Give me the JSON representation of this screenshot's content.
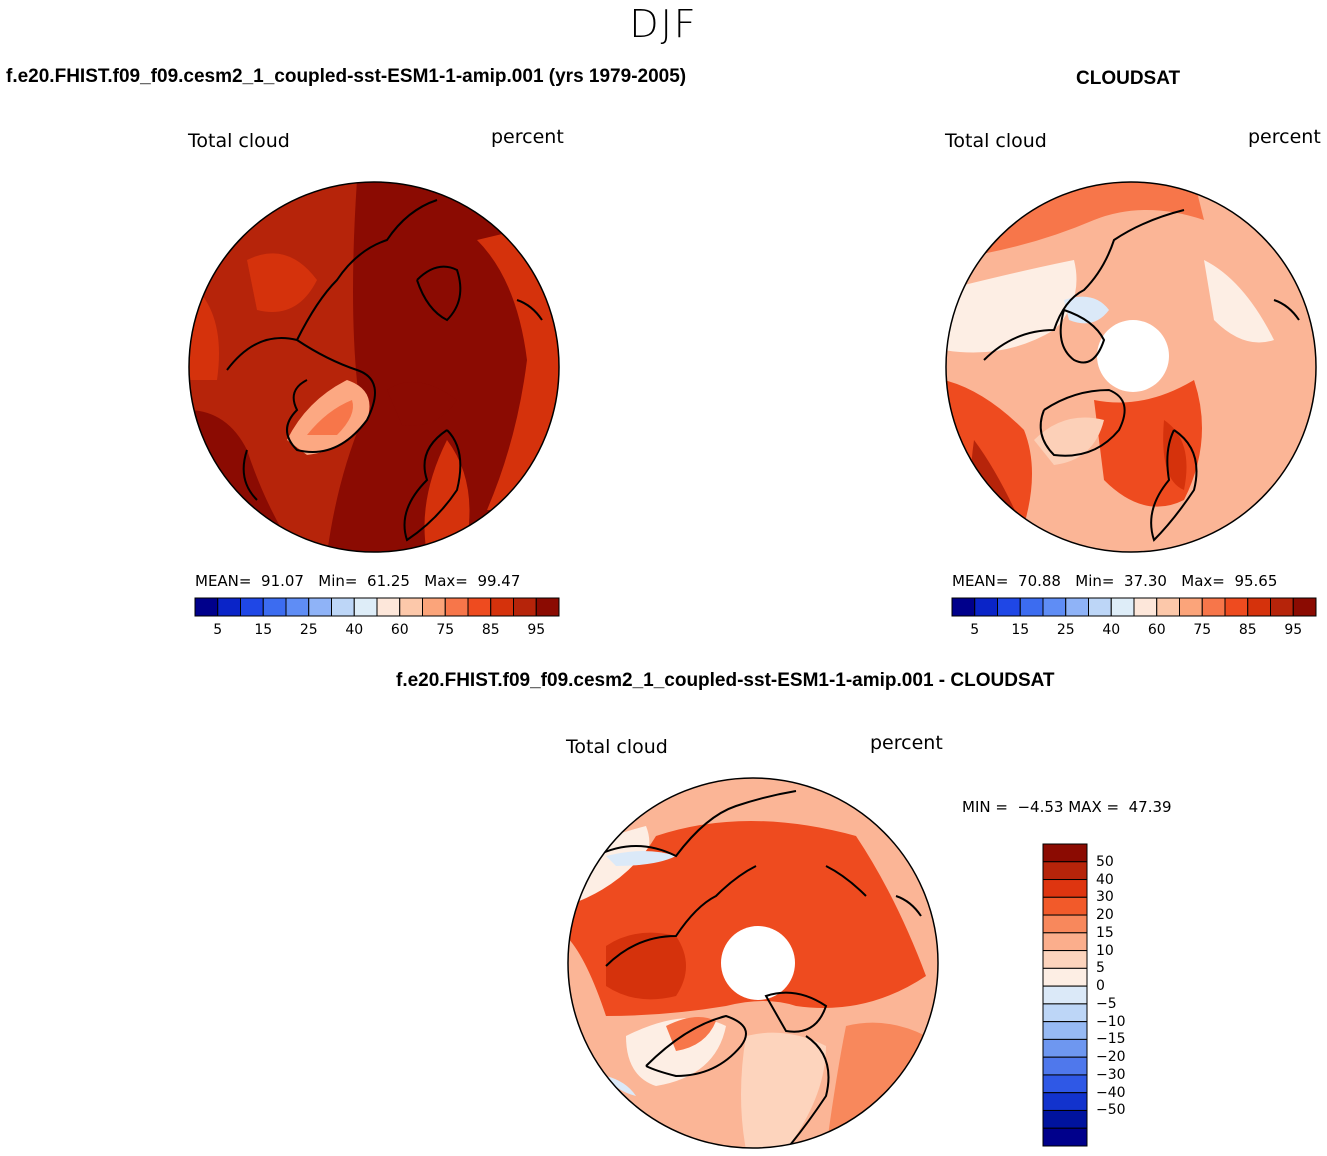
{
  "figure": {
    "title": "DJF"
  },
  "panels": {
    "model": {
      "header": "f.e20.FHIST.f09_f09.cesm2_1_coupled-sst-ESM1-1-amip.001 (yrs 1979-2005)",
      "variable": "Total cloud",
      "units": "percent",
      "mean_label": "MEAN=",
      "mean": "91.07",
      "min_label": "Min=",
      "min": "61.25",
      "max_label": "Max=",
      "max": "99.47"
    },
    "obs": {
      "header": "CLOUDSAT",
      "variable": "Total cloud",
      "units": "percent",
      "mean_label": "MEAN=",
      "mean": "70.88",
      "min_label": "Min=",
      "min": "37.30",
      "max_label": "Max=",
      "max": "95.65"
    },
    "diff": {
      "header": "f.e20.FHIST.f09_f09.cesm2_1_coupled-sst-ESM1-1-amip.001 - CLOUDSAT",
      "variable": "Total cloud",
      "units": "percent",
      "min_label": "MIN =",
      "min": "−4.53",
      "max_label": "MAX =",
      "max": "47.39"
    }
  },
  "colorbar_abs": {
    "colors": [
      "#00008b",
      "#0a24c8",
      "#1f47e6",
      "#3c6cf0",
      "#5f8df5",
      "#8fb3f7",
      "#bdd6f7",
      "#deedf8",
      "#fde7da",
      "#fcc8aa",
      "#fba47a",
      "#f7764a",
      "#ee4b1f",
      "#d5320c",
      "#b6240a",
      "#8b0b02"
    ],
    "ticks": [
      "5",
      "15",
      "25",
      "40",
      "60",
      "75",
      "85",
      "95"
    ]
  },
  "colorbar_diff": {
    "colors": [
      "#8b0b02",
      "#b6240a",
      "#de3510",
      "#f25a2a",
      "#f8885c",
      "#fbae8c",
      "#fdd4bd",
      "#fdeee4",
      "#dbe9f8",
      "#bdd6f7",
      "#97baf4",
      "#6e97f0",
      "#4f78ec",
      "#2f58e6",
      "#1233cd",
      "#00139e",
      "#00008b"
    ],
    "ticks": [
      "50",
      "40",
      "30",
      "20",
      "15",
      "10",
      "5",
      "0",
      "−5",
      "−10",
      "−15",
      "−20",
      "−30",
      "−40",
      "−50"
    ]
  },
  "chart_data": [
    {
      "type": "heatmap",
      "title": "f.e20.FHIST.f09_f09.cesm2_1_coupled-sst-ESM1-1-amip.001 (yrs 1979-2005)",
      "variable": "Total cloud",
      "units": "percent",
      "projection": "north polar stereographic",
      "levels": [
        5,
        10,
        15,
        20,
        25,
        30,
        40,
        50,
        60,
        70,
        75,
        80,
        85,
        90,
        95
      ],
      "stats": {
        "mean": 91.07,
        "min": 61.25,
        "max": 99.47
      }
    },
    {
      "type": "heatmap",
      "title": "CLOUDSAT",
      "variable": "Total cloud",
      "units": "percent",
      "projection": "north polar stereographic",
      "levels": [
        5,
        10,
        15,
        20,
        25,
        30,
        40,
        50,
        60,
        70,
        75,
        80,
        85,
        90,
        95
      ],
      "stats": {
        "mean": 70.88,
        "min": 37.3,
        "max": 95.65
      }
    },
    {
      "type": "heatmap",
      "title": "f.e20.FHIST.f09_f09.cesm2_1_coupled-sst-ESM1-1-amip.001 - CLOUDSAT",
      "variable": "Total cloud",
      "units": "percent",
      "projection": "north polar stereographic",
      "levels": [
        -50,
        -40,
        -30,
        -20,
        -15,
        -10,
        -5,
        0,
        5,
        10,
        15,
        20,
        30,
        40,
        50
      ],
      "stats": {
        "min": -4.53,
        "max": 47.39
      }
    }
  ]
}
